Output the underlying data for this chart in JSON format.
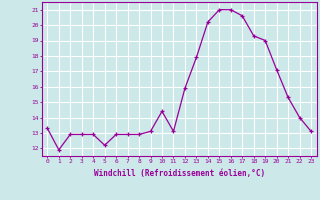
{
  "x": [
    0,
    1,
    2,
    3,
    4,
    5,
    6,
    7,
    8,
    9,
    10,
    11,
    12,
    13,
    14,
    15,
    16,
    17,
    18,
    19,
    20,
    21,
    22,
    23
  ],
  "y": [
    13.3,
    11.9,
    12.9,
    12.9,
    12.9,
    12.2,
    12.9,
    12.9,
    12.9,
    13.1,
    14.4,
    13.1,
    15.9,
    17.9,
    20.2,
    21.0,
    21.0,
    20.6,
    19.3,
    19.0,
    17.1,
    15.3,
    14.0,
    13.1
  ],
  "line_color": "#990099",
  "marker": "+",
  "marker_size": 3,
  "background_color": "#cce8e8",
  "grid_color": "#ffffff",
  "xlabel": "Windchill (Refroidissement éolien,°C)",
  "xlabel_color": "#990099",
  "tick_color": "#990099",
  "ylim": [
    11.5,
    21.5
  ],
  "yticks": [
    12,
    13,
    14,
    15,
    16,
    17,
    18,
    19,
    20,
    21
  ],
  "xlim": [
    -0.5,
    23.5
  ],
  "xticks": [
    0,
    1,
    2,
    3,
    4,
    5,
    6,
    7,
    8,
    9,
    10,
    11,
    12,
    13,
    14,
    15,
    16,
    17,
    18,
    19,
    20,
    21,
    22,
    23
  ]
}
